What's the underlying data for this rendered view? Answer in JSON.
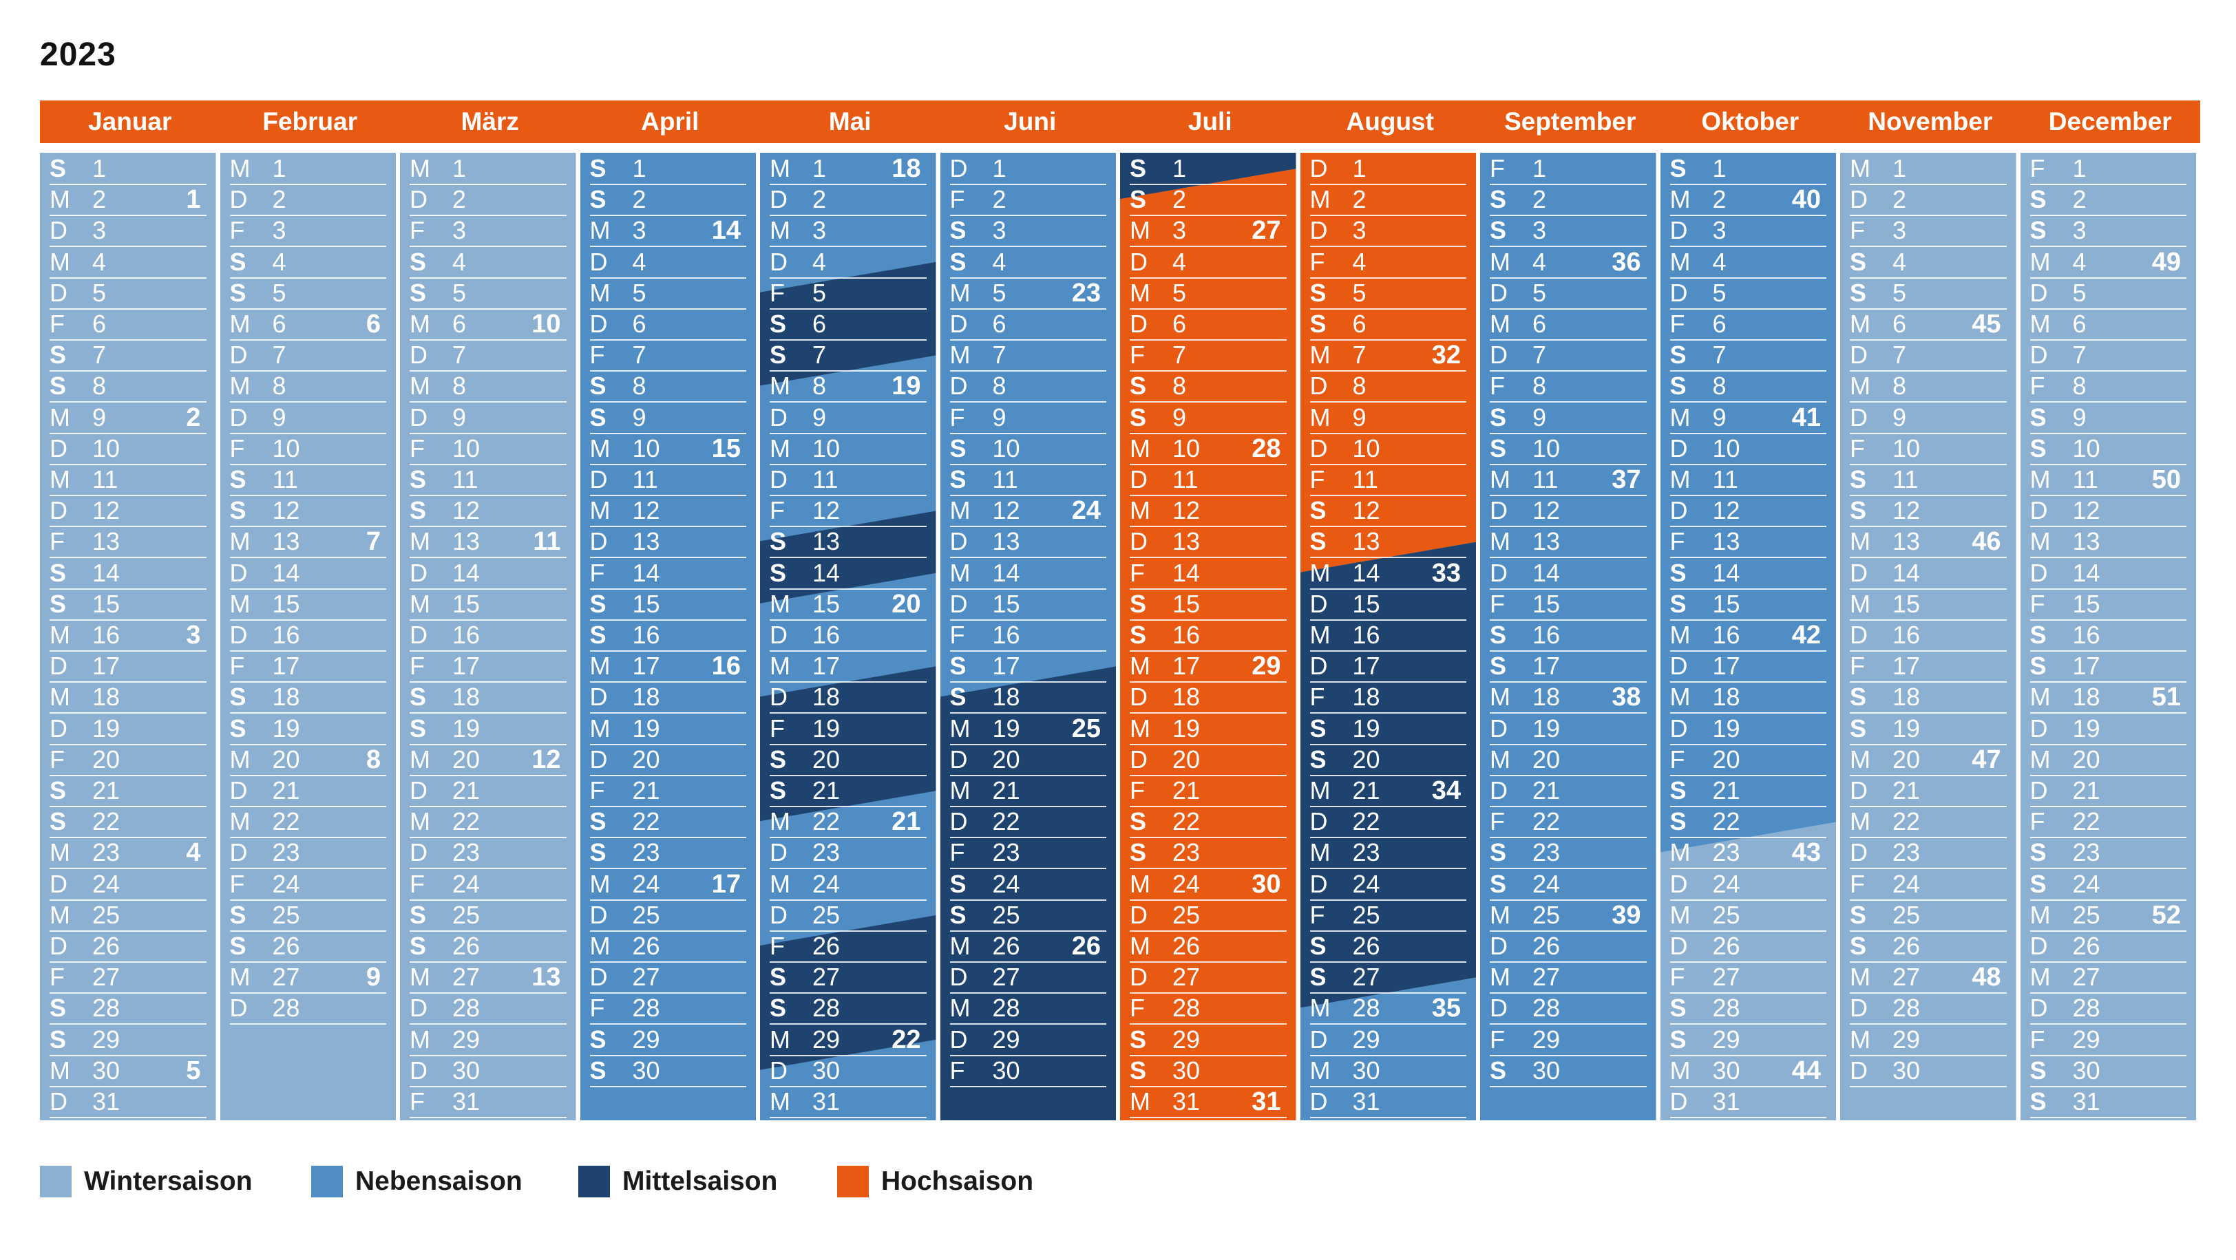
{
  "title": "2023",
  "colors": {
    "header": "#e85a12",
    "winter": "#8cb0d2",
    "neben": "#4f8dc4",
    "mittel": "#1d436e",
    "hoch": "#e85a12"
  },
  "legend": [
    {
      "label": "Wintersaison",
      "season": "winter"
    },
    {
      "label": "Nebensaison",
      "season": "neben"
    },
    {
      "label": "Mittelsaison",
      "season": "mittel"
    },
    {
      "label": "Hochsaison",
      "season": "hoch"
    }
  ],
  "months": [
    {
      "name": "Januar",
      "days": 31,
      "start": 6,
      "seasons": []
    },
    {
      "name": "Februar",
      "days": 28,
      "start": 2,
      "seasons": []
    },
    {
      "name": "März",
      "days": 31,
      "start": 2,
      "seasons": []
    },
    {
      "name": "April",
      "days": 30,
      "start": 5,
      "seasons": [
        {
          "from": 1,
          "to": 30,
          "season": "neben"
        }
      ]
    },
    {
      "name": "Mai",
      "days": 31,
      "start": 0,
      "seasons": [
        {
          "from": 1,
          "to": 31,
          "season": "neben"
        },
        {
          "from": 5,
          "to": 7,
          "season": "mittel"
        },
        {
          "from": 13,
          "to": 14,
          "season": "mittel"
        },
        {
          "from": 18,
          "to": 21,
          "season": "mittel"
        },
        {
          "from": 26,
          "to": 29,
          "season": "mittel"
        }
      ]
    },
    {
      "name": "Juni",
      "days": 30,
      "start": 3,
      "seasons": [
        {
          "from": 1,
          "to": 30,
          "season": "neben"
        },
        {
          "from": 18,
          "to": 30,
          "season": "mittel"
        }
      ]
    },
    {
      "name": "Juli",
      "days": 31,
      "start": 5,
      "seasons": [
        {
          "from": 1,
          "to": 1,
          "season": "mittel"
        },
        {
          "from": 2,
          "to": 31,
          "season": "hoch"
        }
      ]
    },
    {
      "name": "August",
      "days": 31,
      "start": 1,
      "seasons": [
        {
          "from": 1,
          "to": 13,
          "season": "hoch"
        },
        {
          "from": 14,
          "to": 27,
          "season": "mittel"
        },
        {
          "from": 28,
          "to": 31,
          "season": "neben"
        }
      ]
    },
    {
      "name": "September",
      "days": 30,
      "start": 4,
      "seasons": [
        {
          "from": 1,
          "to": 30,
          "season": "neben"
        }
      ]
    },
    {
      "name": "Oktober",
      "days": 31,
      "start": 6,
      "seasons": [
        {
          "from": 1,
          "to": 22,
          "season": "neben"
        }
      ]
    },
    {
      "name": "November",
      "days": 30,
      "start": 2,
      "seasons": []
    },
    {
      "name": "December",
      "days": 31,
      "start": 4,
      "seasons": []
    }
  ],
  "weekday_letters": [
    "M",
    "D",
    "M",
    "D",
    "F",
    "S",
    "S"
  ]
}
